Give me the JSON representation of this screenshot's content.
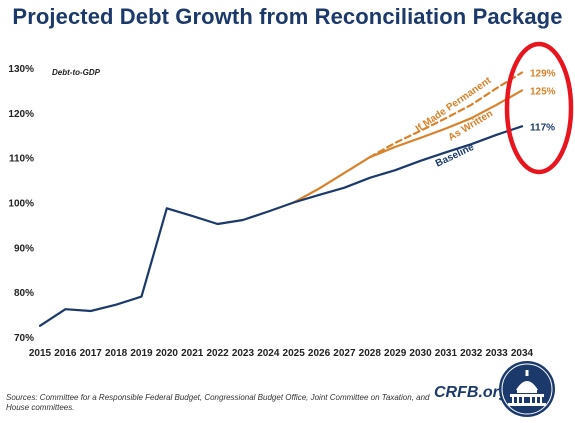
{
  "header": {
    "title": "Projected Debt Growth from Reconciliation Package"
  },
  "footer": {
    "sources": "Sources: Committee for a Responsible Federal Budget, Congressional Budget Office, Joint Committee on Taxation, and House committees.",
    "brand": "CRFB.org"
  },
  "colors": {
    "baseline": "#1b3a6b",
    "orange": "#d9822b",
    "highlight_circle": "#e8141e",
    "title": "#1b3a6b"
  },
  "chart_data": {
    "type": "line",
    "title": "Projected Debt Growth from Reconciliation Package",
    "ylabel": "Debt-to-GDP",
    "xlabel": "",
    "ylim": [
      70,
      130
    ],
    "yticks": [
      "70%",
      "80%",
      "90%",
      "100%",
      "110%",
      "120%",
      "130%"
    ],
    "x": [
      2015,
      2016,
      2017,
      2018,
      2019,
      2020,
      2021,
      2022,
      2023,
      2024,
      2025,
      2026,
      2027,
      2028,
      2029,
      2030,
      2031,
      2032,
      2033,
      2034
    ],
    "grid": false,
    "series": [
      {
        "name": "Baseline",
        "style": "solid",
        "color": "#1b3a6b",
        "x": [
          2015,
          2016,
          2017,
          2018,
          2019,
          2020,
          2021,
          2022,
          2023,
          2024,
          2025,
          2026,
          2027,
          2028,
          2029,
          2030,
          2031,
          2032,
          2033,
          2034
        ],
        "values": [
          72.5,
          76.2,
          75.8,
          77.2,
          79.0,
          98.7,
          97.0,
          95.2,
          96.1,
          98.0,
          100.0,
          101.7,
          103.3,
          105.5,
          107.2,
          109.3,
          111.2,
          113.0,
          115.1,
          117.0
        ],
        "end_label": "117%"
      },
      {
        "name": "As Written",
        "style": "solid",
        "color": "#d9822b",
        "x": [
          2025,
          2026,
          2027,
          2028,
          2029,
          2030,
          2031,
          2032,
          2033,
          2034
        ],
        "values": [
          100.0,
          103.1,
          106.6,
          110.1,
          112.4,
          114.4,
          116.5,
          118.8,
          121.8,
          125.0
        ],
        "end_label": "125%"
      },
      {
        "name": "If Made Permanent",
        "style": "dashed",
        "color": "#d9822b",
        "x": [
          2028,
          2029,
          2030,
          2031,
          2032,
          2033,
          2034
        ],
        "values": [
          110.1,
          113.3,
          116.0,
          118.8,
          121.8,
          125.5,
          129.0
        ],
        "end_label": "129%"
      }
    ]
  }
}
